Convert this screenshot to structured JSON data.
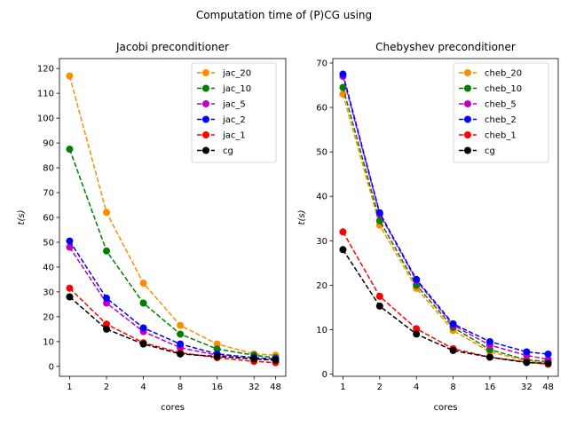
{
  "suptitle": "Computation time of (P)CG using",
  "chart_data": [
    {
      "type": "line",
      "title": "Jacobi preconditioner",
      "xlabel": "cores",
      "ylabel": "t(s)",
      "x_ticks": [
        1,
        2,
        4,
        8,
        16,
        32,
        48
      ],
      "x_scale": "log",
      "ylim": [
        -4,
        124
      ],
      "y_ticks": [
        0,
        10,
        20,
        30,
        40,
        50,
        60,
        70,
        80,
        90,
        100,
        110,
        120
      ],
      "grid": false,
      "legend_position": "top-right",
      "series": [
        {
          "name": "jac_20",
          "color": "#ff8c00",
          "values": [
            117,
            62,
            33.5,
            16.5,
            9,
            5,
            4.5
          ]
        },
        {
          "name": "jac_10",
          "color": "#008000",
          "values": [
            87.5,
            46.5,
            25.5,
            13,
            7,
            4.5,
            3.5
          ]
        },
        {
          "name": "jac_5",
          "color": "#bf00bf",
          "values": [
            48,
            25.5,
            14,
            7.5,
            4.5,
            3,
            2.5
          ]
        },
        {
          "name": "jac_2",
          "color": "#0000ff",
          "values": [
            50.5,
            27.5,
            15.5,
            9,
            5,
            3.5,
            3
          ]
        },
        {
          "name": "jac_1",
          "color": "#ff0000",
          "values": [
            31.5,
            17,
            9.5,
            5.5,
            3.5,
            2,
            1.5
          ]
        },
        {
          "name": "cg",
          "color": "#000000",
          "values": [
            28,
            15,
            9,
            5,
            4,
            3,
            2.5
          ]
        }
      ]
    },
    {
      "type": "line",
      "title": "Chebyshev preconditioner",
      "xlabel": "cores",
      "ylabel": "t(s)",
      "x_ticks": [
        1,
        2,
        4,
        8,
        16,
        32,
        48
      ],
      "x_scale": "log",
      "ylim": [
        -0.5,
        71
      ],
      "y_ticks": [
        0,
        10,
        20,
        30,
        40,
        50,
        60,
        70
      ],
      "grid": false,
      "legend_position": "top-right",
      "series": [
        {
          "name": "cheb_20",
          "color": "#ff8c00",
          "values": [
            63,
            33.5,
            19.3,
            9.8,
            5,
            3,
            2.5
          ]
        },
        {
          "name": "cheb_10",
          "color": "#008000",
          "values": [
            64.5,
            34.5,
            20,
            10.5,
            5.5,
            3.2,
            2.8
          ]
        },
        {
          "name": "cheb_5",
          "color": "#bf00bf",
          "values": [
            67,
            36,
            21,
            11,
            6.5,
            4.2,
            3.3
          ]
        },
        {
          "name": "cheb_2",
          "color": "#0000ff",
          "values": [
            67.5,
            36.3,
            21.3,
            11.3,
            7.3,
            5,
            4.5
          ]
        },
        {
          "name": "cheb_1",
          "color": "#ff0000",
          "values": [
            32,
            17.5,
            10.2,
            5.7,
            3.8,
            2.7,
            2.2
          ]
        },
        {
          "name": "cg",
          "color": "#000000",
          "values": [
            28,
            15.3,
            9,
            5.3,
            3.8,
            2.6,
            2.4
          ]
        }
      ]
    }
  ]
}
